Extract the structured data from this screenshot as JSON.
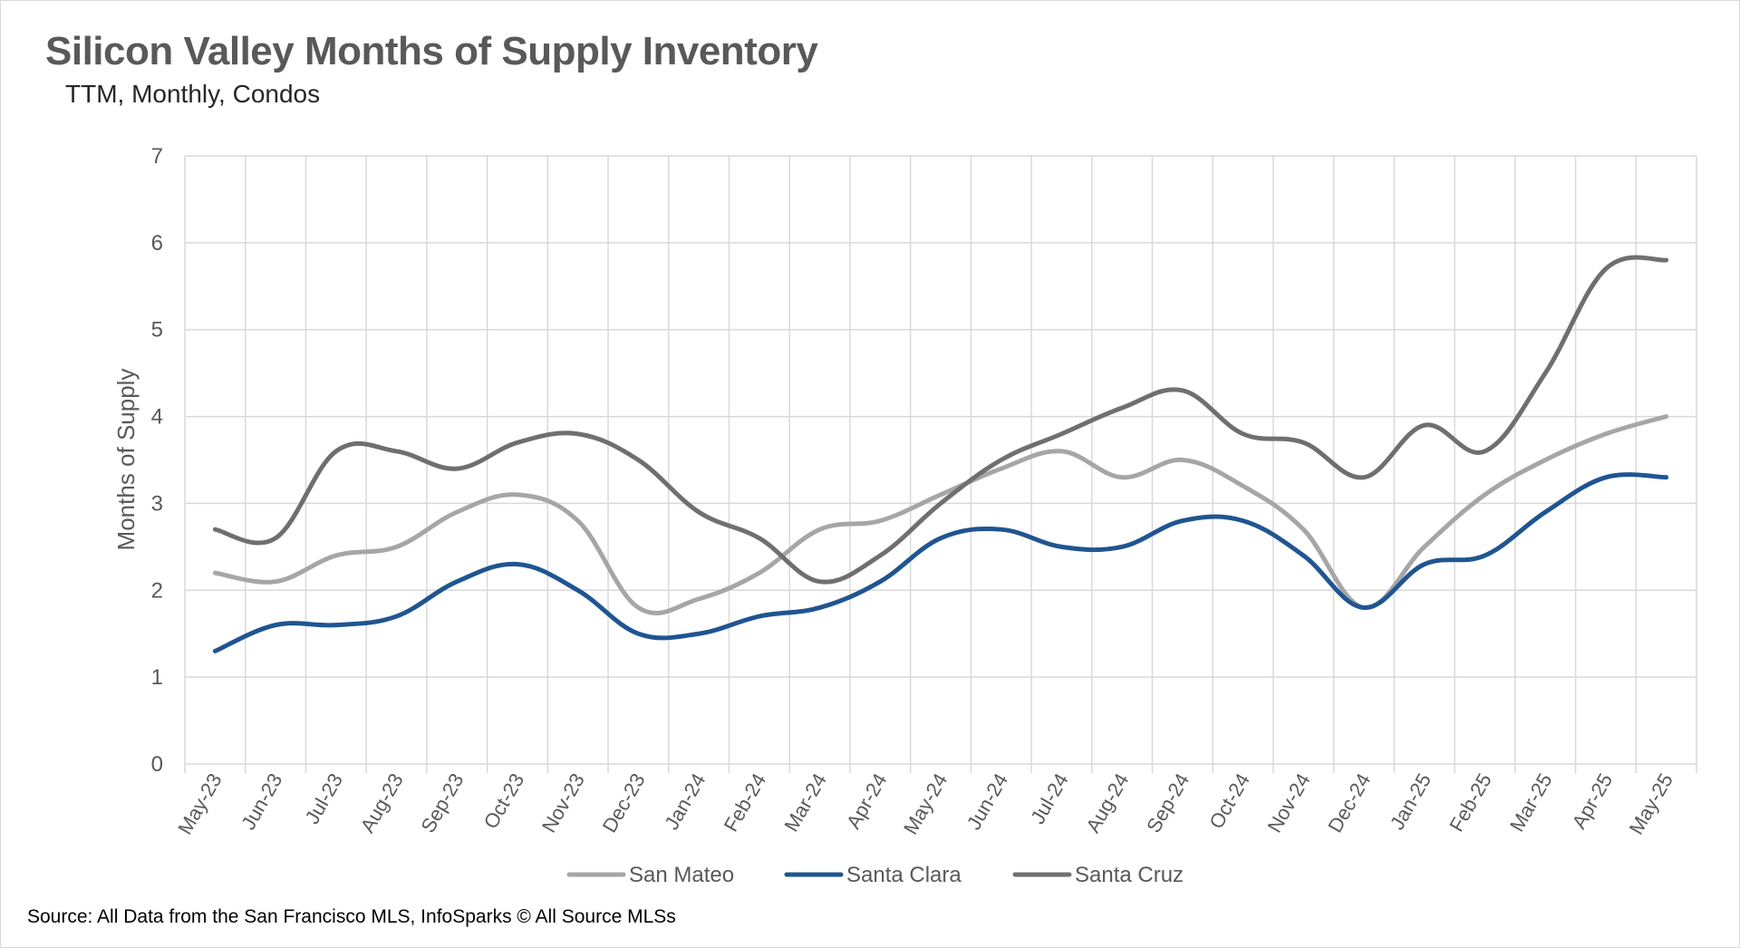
{
  "title": "Silicon Valley Months of Supply Inventory",
  "subtitle": "TTM, Monthly, Condos",
  "source": "Source: All Data from the San Francisco MLS, InfoSparks © All Source MLSs",
  "chart_data": {
    "type": "line",
    "title": "Silicon Valley Months of Supply Inventory",
    "subtitle": "TTM, Monthly, Condos",
    "xlabel": "",
    "ylabel": "Months of Supply",
    "ylim": [
      0,
      7
    ],
    "yticks": [
      "0",
      "1",
      "2",
      "3",
      "4",
      "5",
      "6",
      "7"
    ],
    "grid": true,
    "legend": "bottom",
    "categories": [
      "May-23",
      "Jun-23",
      "Jul-23",
      "Aug-23",
      "Sep-23",
      "Oct-23",
      "Nov-23",
      "Dec-23",
      "Jan-24",
      "Feb-24",
      "Mar-24",
      "Apr-24",
      "May-24",
      "Jun-24",
      "Jul-24",
      "Aug-24",
      "Sep-24",
      "Oct-24",
      "Nov-24",
      "Dec-24",
      "Jan-25",
      "Feb-25",
      "Mar-25",
      "Apr-25",
      "May-25"
    ],
    "series": [
      {
        "name": "San Mateo",
        "color": "#a6a6a6",
        "values": [
          2.2,
          2.1,
          2.4,
          2.5,
          2.9,
          3.1,
          2.8,
          1.8,
          1.9,
          2.2,
          2.7,
          2.8,
          3.1,
          3.4,
          3.6,
          3.3,
          3.5,
          3.2,
          2.7,
          1.8,
          2.5,
          3.1,
          3.5,
          3.8,
          4.0
        ]
      },
      {
        "name": "Santa Clara",
        "color": "#1f5591",
        "values": [
          1.3,
          1.6,
          1.6,
          1.7,
          2.1,
          2.3,
          2.0,
          1.5,
          1.5,
          1.7,
          1.8,
          2.1,
          2.6,
          2.7,
          2.5,
          2.5,
          2.8,
          2.8,
          2.4,
          1.8,
          2.3,
          2.4,
          2.9,
          3.3,
          3.3
        ]
      },
      {
        "name": "Santa Cruz",
        "color": "#6f6f6f",
        "values": [
          2.7,
          2.6,
          3.6,
          3.6,
          3.4,
          3.7,
          3.8,
          3.5,
          2.9,
          2.6,
          2.1,
          2.4,
          3.0,
          3.5,
          3.8,
          4.1,
          4.3,
          3.8,
          3.7,
          3.3,
          3.9,
          3.6,
          4.5,
          5.7,
          5.8
        ]
      }
    ]
  }
}
